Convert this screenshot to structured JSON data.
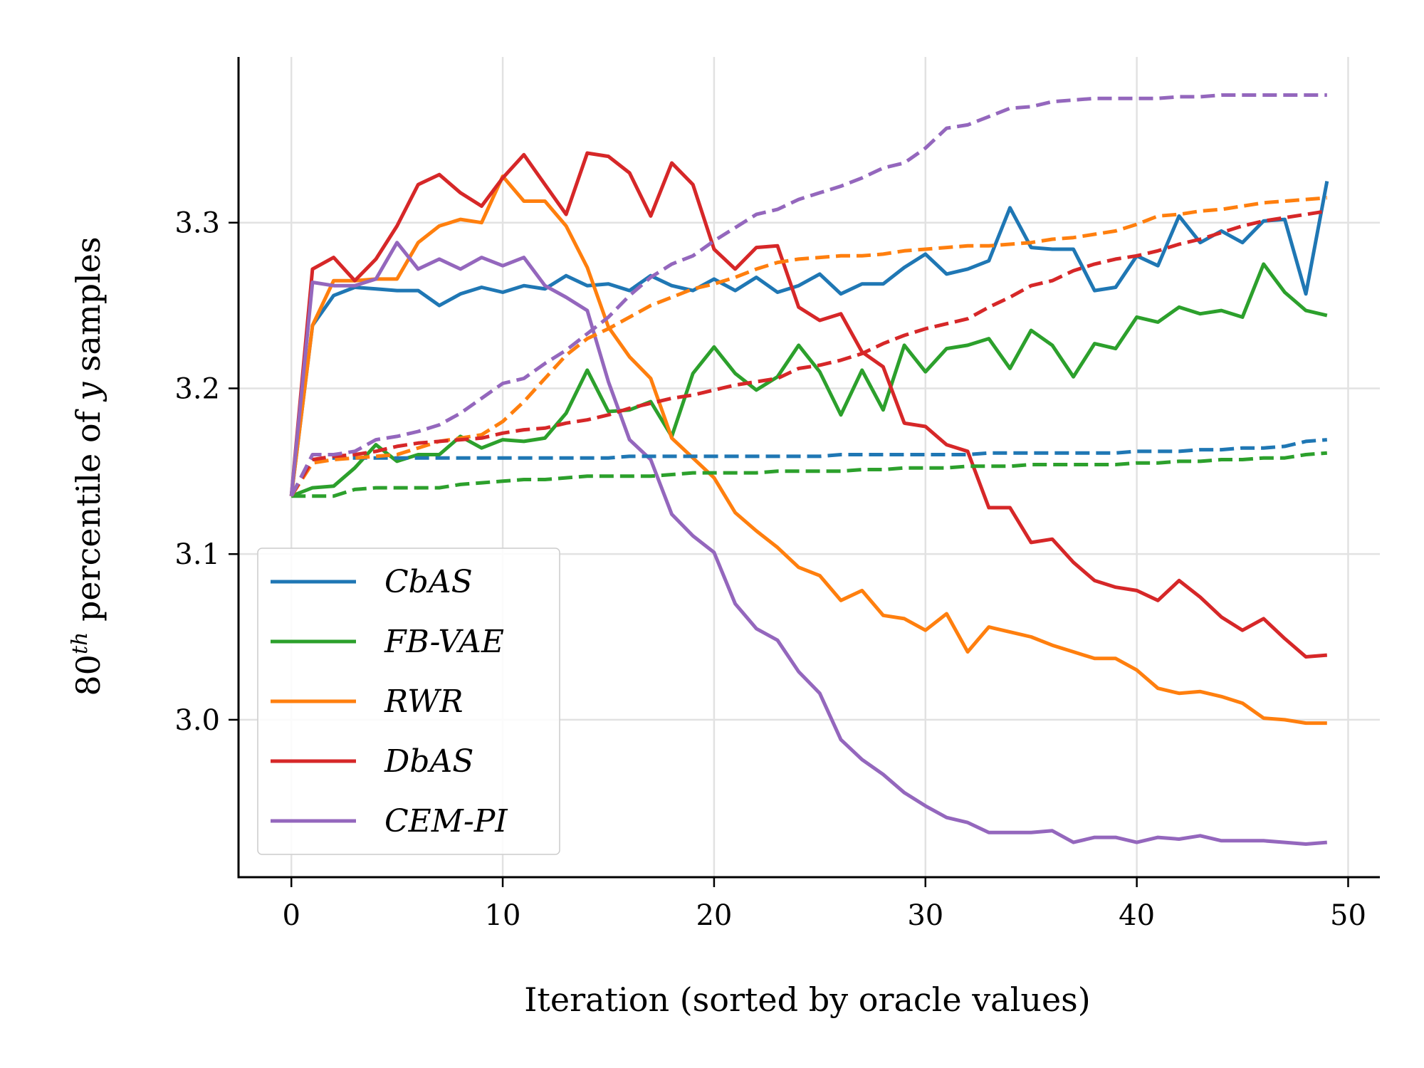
{
  "chart_data": {
    "type": "line",
    "title": "",
    "xlabel": "Iteration (sorted by oracle values)",
    "ylabel_prefix": "80",
    "ylabel_superscript": "th",
    "ylabel_middle": " percentile of ",
    "ylabel_var": "y",
    "ylabel_suffix": " samples",
    "xlim": [
      -2.5,
      51.5
    ],
    "ylim": [
      2.905,
      3.4
    ],
    "xticks": [
      0,
      10,
      20,
      30,
      40,
      50
    ],
    "yticks": [
      3.0,
      3.1,
      3.2,
      3.3
    ],
    "xtick_labels": [
      "0",
      "10",
      "20",
      "30",
      "40",
      "50"
    ],
    "ytick_labels": [
      "3.0",
      "3.1",
      "3.2",
      "3.3"
    ],
    "grid": true,
    "legend_position": "lower-left",
    "series": [
      {
        "name": "CbAS",
        "color": "#1f77b4",
        "dash": false,
        "values": [
          3.135,
          3.238,
          3.256,
          3.261,
          3.26,
          3.259,
          3.259,
          3.25,
          3.257,
          3.261,
          3.258,
          3.262,
          3.26,
          3.268,
          3.262,
          3.263,
          3.259,
          3.268,
          3.262,
          3.259,
          3.266,
          3.259,
          3.267,
          3.258,
          3.262,
          3.269,
          3.257,
          3.263,
          3.263,
          3.273,
          3.281,
          3.269,
          3.272,
          3.277,
          3.309,
          3.285,
          3.284,
          3.284,
          3.259,
          3.261,
          3.28,
          3.274,
          3.304,
          3.288,
          3.295,
          3.288,
          3.301,
          3.302,
          3.257,
          3.325
        ]
      },
      {
        "name": "FB-VAE",
        "color": "#2ca02c",
        "dash": false,
        "values": [
          3.135,
          3.14,
          3.141,
          3.152,
          3.166,
          3.156,
          3.16,
          3.16,
          3.171,
          3.164,
          3.169,
          3.168,
          3.17,
          3.185,
          3.211,
          3.186,
          3.187,
          3.192,
          3.171,
          3.209,
          3.225,
          3.209,
          3.199,
          3.207,
          3.226,
          3.21,
          3.184,
          3.211,
          3.187,
          3.226,
          3.21,
          3.224,
          3.226,
          3.23,
          3.212,
          3.235,
          3.226,
          3.207,
          3.227,
          3.224,
          3.243,
          3.24,
          3.249,
          3.245,
          3.247,
          3.243,
          3.275,
          3.258,
          3.247,
          3.244
        ]
      },
      {
        "name": "RWR",
        "color": "#ff7f0e",
        "dash": false,
        "values": [
          3.135,
          3.238,
          3.265,
          3.265,
          3.266,
          3.266,
          3.288,
          3.298,
          3.302,
          3.3,
          3.328,
          3.313,
          3.313,
          3.298,
          3.273,
          3.237,
          3.219,
          3.206,
          3.17,
          3.158,
          3.146,
          3.125,
          3.114,
          3.104,
          3.092,
          3.087,
          3.072,
          3.078,
          3.063,
          3.061,
          3.054,
          3.064,
          3.041,
          3.056,
          3.053,
          3.05,
          3.045,
          3.041,
          3.037,
          3.037,
          3.03,
          3.019,
          3.016,
          3.017,
          3.014,
          3.01,
          3.001,
          3.0,
          2.998,
          2.998
        ]
      },
      {
        "name": "DbAS",
        "color": "#d62728",
        "dash": false,
        "values": [
          3.135,
          3.272,
          3.279,
          3.265,
          3.278,
          3.298,
          3.323,
          3.329,
          3.318,
          3.31,
          3.327,
          3.341,
          3.323,
          3.305,
          3.342,
          3.34,
          3.33,
          3.304,
          3.336,
          3.323,
          3.284,
          3.272,
          3.285,
          3.286,
          3.249,
          3.241,
          3.245,
          3.222,
          3.213,
          3.179,
          3.177,
          3.166,
          3.162,
          3.128,
          3.128,
          3.107,
          3.109,
          3.095,
          3.084,
          3.08,
          3.078,
          3.072,
          3.084,
          3.074,
          3.062,
          3.054,
          3.061,
          3.049,
          3.038,
          3.039
        ]
      },
      {
        "name": "CEM-PI",
        "color": "#9467bd",
        "dash": false,
        "values": [
          3.135,
          3.264,
          3.262,
          3.262,
          3.266,
          3.288,
          3.272,
          3.278,
          3.272,
          3.279,
          3.274,
          3.279,
          3.262,
          3.255,
          3.247,
          3.204,
          3.169,
          3.157,
          3.124,
          3.111,
          3.101,
          3.07,
          3.055,
          3.048,
          3.029,
          3.016,
          2.988,
          2.976,
          2.967,
          2.956,
          2.948,
          2.941,
          2.938,
          2.932,
          2.932,
          2.932,
          2.933,
          2.926,
          2.929,
          2.929,
          2.926,
          2.929,
          2.928,
          2.93,
          2.927,
          2.927,
          2.927,
          2.926,
          2.925,
          2.926
        ]
      },
      {
        "name": "CbAS-dashed",
        "color": "#1f77b4",
        "dash": true,
        "values": [
          3.135,
          3.157,
          3.158,
          3.158,
          3.158,
          3.158,
          3.158,
          3.158,
          3.158,
          3.158,
          3.158,
          3.158,
          3.158,
          3.158,
          3.158,
          3.158,
          3.159,
          3.159,
          3.159,
          3.159,
          3.159,
          3.159,
          3.159,
          3.159,
          3.159,
          3.159,
          3.16,
          3.16,
          3.16,
          3.16,
          3.16,
          3.16,
          3.16,
          3.161,
          3.161,
          3.161,
          3.161,
          3.161,
          3.161,
          3.161,
          3.162,
          3.162,
          3.162,
          3.163,
          3.163,
          3.164,
          3.164,
          3.165,
          3.168,
          3.169
        ]
      },
      {
        "name": "FB-VAE-dashed",
        "color": "#2ca02c",
        "dash": true,
        "values": [
          3.135,
          3.135,
          3.135,
          3.139,
          3.14,
          3.14,
          3.14,
          3.14,
          3.142,
          3.143,
          3.144,
          3.145,
          3.145,
          3.146,
          3.147,
          3.147,
          3.147,
          3.147,
          3.148,
          3.149,
          3.149,
          3.149,
          3.149,
          3.15,
          3.15,
          3.15,
          3.15,
          3.151,
          3.151,
          3.152,
          3.152,
          3.152,
          3.153,
          3.153,
          3.153,
          3.154,
          3.154,
          3.154,
          3.154,
          3.154,
          3.155,
          3.155,
          3.156,
          3.156,
          3.157,
          3.157,
          3.158,
          3.158,
          3.16,
          3.161
        ]
      },
      {
        "name": "RWR-dashed",
        "color": "#ff7f0e",
        "dash": true,
        "values": [
          3.135,
          3.155,
          3.157,
          3.158,
          3.159,
          3.16,
          3.164,
          3.168,
          3.17,
          3.172,
          3.18,
          3.192,
          3.206,
          3.22,
          3.23,
          3.236,
          3.243,
          3.25,
          3.255,
          3.26,
          3.263,
          3.267,
          3.272,
          3.276,
          3.278,
          3.279,
          3.28,
          3.28,
          3.281,
          3.283,
          3.284,
          3.285,
          3.286,
          3.286,
          3.287,
          3.288,
          3.29,
          3.291,
          3.293,
          3.295,
          3.299,
          3.304,
          3.305,
          3.307,
          3.308,
          3.31,
          3.312,
          3.313,
          3.314,
          3.315
        ]
      },
      {
        "name": "DbAS-dashed",
        "color": "#d62728",
        "dash": true,
        "values": [
          3.135,
          3.157,
          3.159,
          3.16,
          3.162,
          3.165,
          3.167,
          3.168,
          3.169,
          3.17,
          3.173,
          3.175,
          3.176,
          3.179,
          3.181,
          3.184,
          3.188,
          3.191,
          3.194,
          3.196,
          3.199,
          3.202,
          3.204,
          3.206,
          3.212,
          3.214,
          3.217,
          3.221,
          3.227,
          3.232,
          3.236,
          3.239,
          3.242,
          3.249,
          3.255,
          3.262,
          3.265,
          3.271,
          3.275,
          3.278,
          3.28,
          3.283,
          3.287,
          3.29,
          3.294,
          3.298,
          3.301,
          3.303,
          3.305,
          3.307
        ]
      },
      {
        "name": "CEM-PI-dashed",
        "color": "#9467bd",
        "dash": true,
        "values": [
          3.135,
          3.16,
          3.16,
          3.162,
          3.169,
          3.171,
          3.174,
          3.178,
          3.185,
          3.194,
          3.203,
          3.206,
          3.215,
          3.223,
          3.233,
          3.243,
          3.256,
          3.267,
          3.275,
          3.28,
          3.289,
          3.297,
          3.305,
          3.308,
          3.314,
          3.318,
          3.322,
          3.327,
          3.333,
          3.336,
          3.345,
          3.357,
          3.359,
          3.364,
          3.369,
          3.37,
          3.373,
          3.374,
          3.375,
          3.375,
          3.375,
          3.375,
          3.376,
          3.376,
          3.377,
          3.377,
          3.377,
          3.377,
          3.377,
          3.377
        ]
      }
    ],
    "legend": [
      "CbAS",
      "FB-VAE",
      "RWR",
      "DbAS",
      "CEM-PI"
    ]
  }
}
